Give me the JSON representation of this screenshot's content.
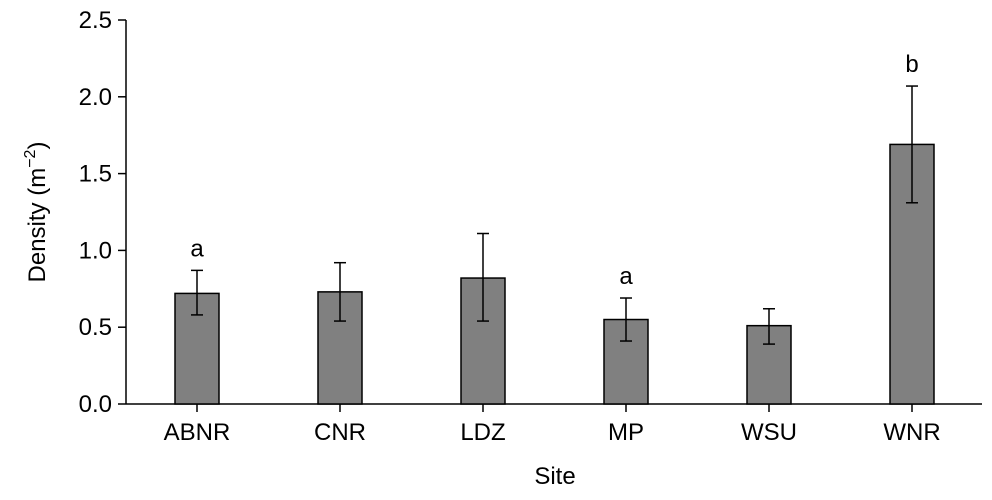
{
  "chart_data": {
    "type": "bar",
    "categories": [
      "ABNR",
      "CNR",
      "LDZ",
      "MP",
      "WSU",
      "WNR"
    ],
    "values": [
      0.72,
      0.73,
      0.82,
      0.55,
      0.51,
      1.69
    ],
    "error_high": [
      0.87,
      0.92,
      1.11,
      0.69,
      0.62,
      2.07
    ],
    "error_low": [
      0.58,
      0.54,
      0.54,
      0.41,
      0.39,
      1.31
    ],
    "annotations": [
      "a",
      "",
      "",
      "a",
      "",
      "b"
    ],
    "xlabel": "Site",
    "ylabel_main": "Density (m",
    "ylabel_sup": "−2",
    "ylabel_close": ")",
    "ylim": [
      0,
      2.5
    ],
    "yticks": [
      "0.0",
      "0.5",
      "1.0",
      "1.5",
      "2.0",
      "2.5"
    ],
    "grid": false,
    "bar_color": "#808080"
  }
}
